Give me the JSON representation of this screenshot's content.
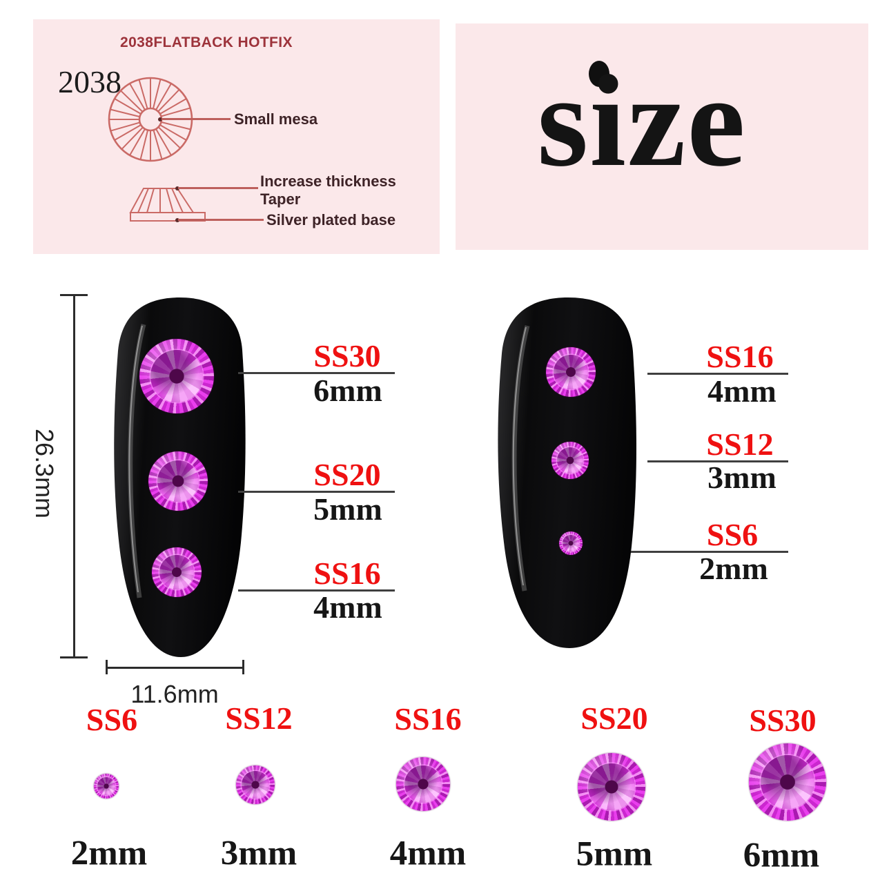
{
  "spec_panel": {
    "header": "2038FLATBACK HOTFIX",
    "code": "2038",
    "callout_small_mesa": "Small mesa",
    "callout_increase_thickness": "Increase thickness",
    "callout_taper": "Taper",
    "callout_silver_base": "Silver plated base"
  },
  "size_panel": {
    "title": "size"
  },
  "dimensions": {
    "nail_height": "26.3mm",
    "nail_width": "11.6mm"
  },
  "left_nail_stones": [
    {
      "ss": "SS30",
      "mm": "6mm"
    },
    {
      "ss": "SS20",
      "mm": "5mm"
    },
    {
      "ss": "SS16",
      "mm": "4mm"
    }
  ],
  "right_nail_stones": [
    {
      "ss": "SS16",
      "mm": "4mm"
    },
    {
      "ss": "SS12",
      "mm": "3mm"
    },
    {
      "ss": "SS6",
      "mm": "2mm"
    }
  ],
  "size_chart": [
    {
      "ss": "SS6",
      "mm": "2mm"
    },
    {
      "ss": "SS12",
      "mm": "3mm"
    },
    {
      "ss": "SS16",
      "mm": "4mm"
    },
    {
      "ss": "SS20",
      "mm": "5mm"
    },
    {
      "ss": "SS30",
      "mm": "6mm"
    }
  ],
  "colors": {
    "accent_red": "#ef1111",
    "panel_pink": "#fbe8ea",
    "diagram_salmon": "#ca6a66",
    "header_maroon": "#9d333b",
    "gem_magenta": "#d32fd6",
    "gem_center": "#4e074a",
    "nail_black": "#0b0b0d"
  }
}
